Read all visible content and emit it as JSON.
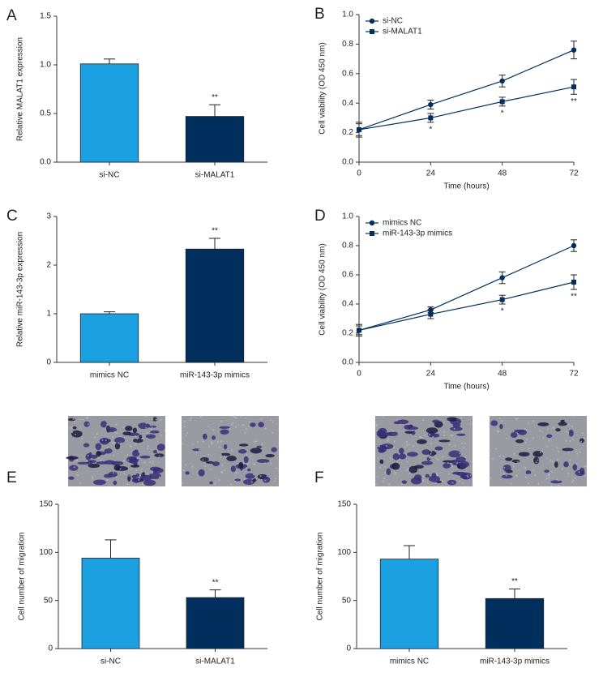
{
  "chart_data": [
    {
      "type": "bar",
      "panel": "A",
      "ylabel": "Relative MALAT1 expression",
      "categories": [
        "si-NC",
        "si-MALAT1"
      ],
      "values": [
        1.01,
        0.47
      ],
      "errors": [
        0.05,
        0.12
      ],
      "colors": [
        "#1ba1e2",
        "#012f5d"
      ],
      "ylim": [
        0,
        1.5
      ],
      "yticks": [
        {
          "value": 0,
          "label": "0.0"
        },
        0.5,
        {
          "value": 1,
          "label": "1.0"
        },
        1.5
      ],
      "annotations": [
        {
          "x": "si-MALAT1",
          "text": "**"
        }
      ]
    },
    {
      "type": "line",
      "panel": "B",
      "xlabel": "Time (hours)",
      "ylabel": "Cell viability (OD 450 nm)",
      "x": [
        0,
        24,
        48,
        72
      ],
      "series": [
        {
          "name": "si-NC",
          "color": "#012f5d",
          "marker": "circle",
          "values": [
            0.22,
            0.39,
            0.55,
            0.76
          ],
          "errors": [
            0.04,
            0.03,
            0.04,
            0.06
          ]
        },
        {
          "name": "si-MALAT1",
          "color": "#012f5d",
          "marker": "square",
          "values": [
            0.22,
            0.3,
            0.41,
            0.51
          ],
          "errors": [
            0.05,
            0.03,
            0.03,
            0.05
          ]
        }
      ],
      "xlim": [
        0,
        72
      ],
      "xticks": [
        0,
        24,
        48,
        72
      ],
      "ylim": [
        0,
        1
      ],
      "yticks": [
        {
          "value": 0,
          "label": "0.0"
        },
        0.2,
        0.4,
        0.6,
        0.8,
        {
          "value": 1,
          "label": "1.0"
        }
      ],
      "annotations": [
        {
          "x": 24,
          "text": "*"
        },
        {
          "x": 48,
          "text": "*"
        },
        {
          "x": 72,
          "text": "**"
        }
      ]
    },
    {
      "type": "bar",
      "panel": "C",
      "ylabel": "Relative miR-143-3p expression",
      "categories": [
        "mimics NC",
        "miR-143-3p mimics"
      ],
      "values": [
        1.0,
        2.33
      ],
      "errors": [
        0.04,
        0.22
      ],
      "colors": [
        "#1ba1e2",
        "#012f5d"
      ],
      "ylim": [
        0,
        3
      ],
      "yticks": [
        0,
        1,
        2,
        3
      ],
      "annotations": [
        {
          "x": "miR-143-3p mimics",
          "text": "**"
        }
      ]
    },
    {
      "type": "line",
      "panel": "D",
      "xlabel": "Time (hours)",
      "ylabel": "Cell viability (OD 450 nm)",
      "x": [
        0,
        24,
        48,
        72
      ],
      "series": [
        {
          "name": "mimics NC",
          "color": "#012f5d",
          "marker": "circle",
          "values": [
            0.22,
            0.36,
            0.58,
            0.8
          ],
          "errors": [
            0.03,
            0.02,
            0.04,
            0.04
          ]
        },
        {
          "name": "miR-143-3p mimics",
          "color": "#012f5d",
          "marker": "square",
          "values": [
            0.22,
            0.33,
            0.43,
            0.55
          ],
          "errors": [
            0.04,
            0.03,
            0.03,
            0.05
          ]
        }
      ],
      "xlim": [
        0,
        72
      ],
      "xticks": [
        0,
        24,
        48,
        72
      ],
      "ylim": [
        0,
        1
      ],
      "yticks": [
        {
          "value": 0,
          "label": "0.0"
        },
        0.2,
        0.4,
        0.6,
        0.8,
        {
          "value": 1,
          "label": "1.0"
        }
      ],
      "annotations": [
        {
          "x": 48,
          "text": "*"
        },
        {
          "x": 72,
          "text": "**"
        }
      ]
    },
    {
      "type": "bar",
      "panel": "E",
      "ylabel": "Cell number of migration",
      "categories": [
        "si-NC",
        "si-MALAT1"
      ],
      "values": [
        94,
        53
      ],
      "errors": [
        19,
        8
      ],
      "colors": [
        "#1ba1e2",
        "#012f5d"
      ],
      "ylim": [
        0,
        150
      ],
      "yticks": [
        0,
        50,
        100,
        150
      ],
      "annotations": [
        {
          "x": "si-MALAT1",
          "text": "**"
        }
      ]
    },
    {
      "type": "bar",
      "panel": "F",
      "ylabel": "Cell number of migration",
      "categories": [
        "mimics NC",
        "miR-143-3p mimics"
      ],
      "values": [
        93,
        52
      ],
      "errors": [
        14,
        10
      ],
      "colors": [
        "#1ba1e2",
        "#012f5d"
      ],
      "ylim": [
        0,
        150
      ],
      "yticks": [
        0,
        50,
        100,
        150
      ],
      "annotations": [
        {
          "x": "miR-143-3p mimics",
          "text": "**"
        }
      ]
    }
  ]
}
